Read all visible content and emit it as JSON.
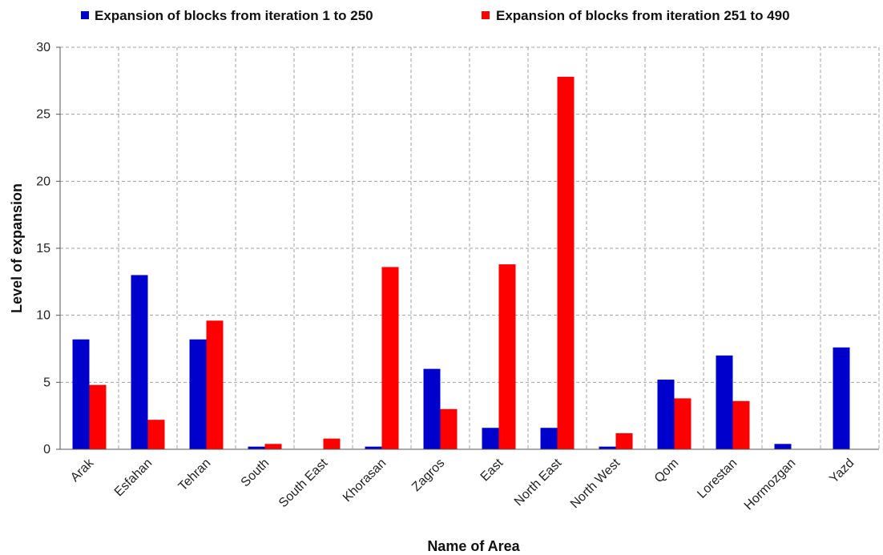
{
  "chart_data": {
    "type": "bar",
    "xlabel": "Name of Area",
    "ylabel": "Level of expansion",
    "ylim": [
      0,
      30
    ],
    "yticks": [
      0,
      5,
      10,
      15,
      20,
      25,
      30
    ],
    "grid": true,
    "legend_position": "top",
    "categories": [
      "Arak",
      "Esfahan",
      "Tehran",
      "South",
      "South East",
      "Khorasan",
      "Zagros",
      "East",
      "North East",
      "North West",
      "Qom",
      "Lorestan",
      "Hormozgan",
      "Yazd"
    ],
    "series": [
      {
        "name": "Expansion of blocks from iteration 1 to 250",
        "color": "#0000cc",
        "values": [
          8.2,
          13.0,
          8.2,
          0.2,
          0,
          0.2,
          6.0,
          1.6,
          1.6,
          0.2,
          5.2,
          7.0,
          0.4,
          7.6
        ]
      },
      {
        "name": "Expansion of blocks from iteration 251 to 490",
        "color": "#ff0000",
        "values": [
          4.8,
          2.2,
          9.6,
          0.4,
          0.8,
          13.6,
          3.0,
          13.8,
          27.8,
          1.2,
          3.8,
          3.6,
          0,
          0
        ]
      }
    ]
  }
}
